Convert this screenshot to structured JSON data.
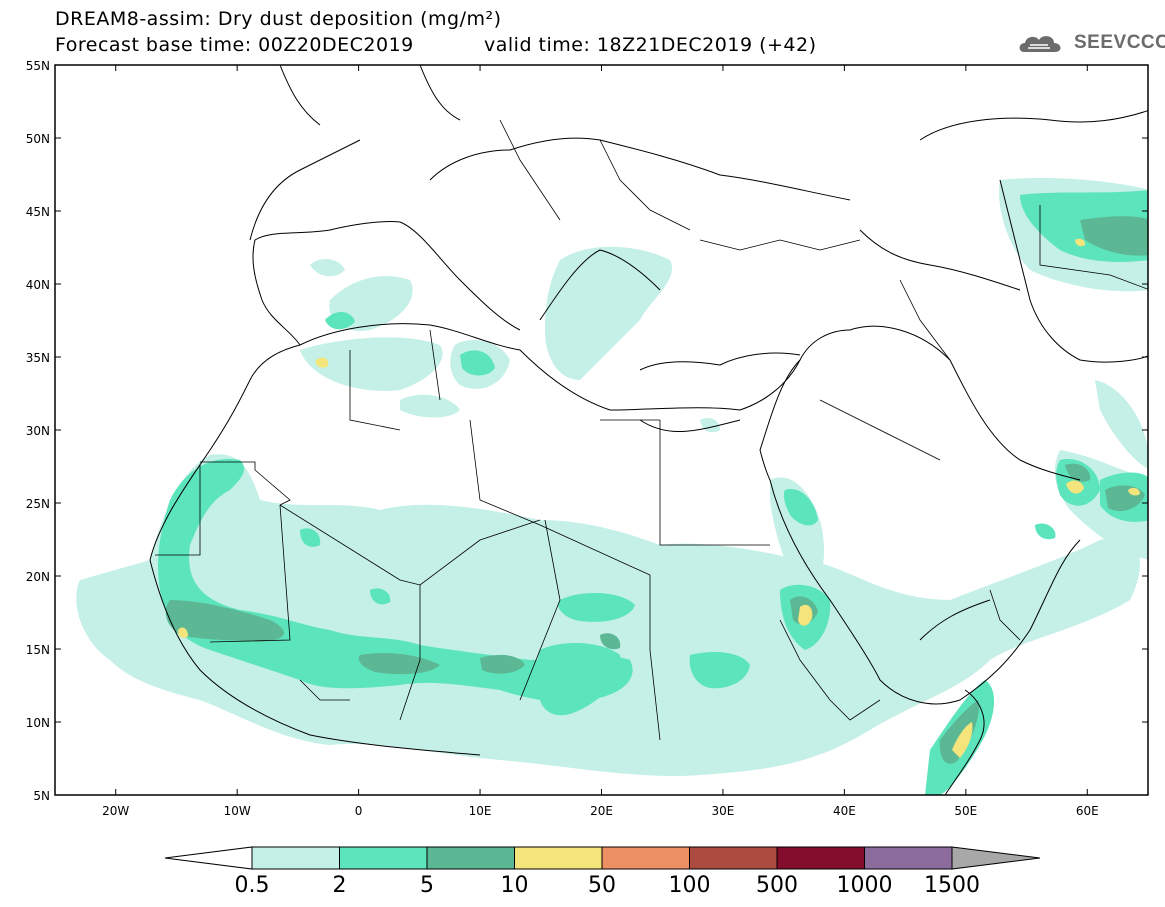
{
  "header": {
    "title_line1": "DREAM8-assim: Dry dust deposition (mg/m²)",
    "base_time": "Forecast base time: 00Z20DEC2019",
    "valid_time": "valid time: 18Z21DEC2019 (+42)",
    "logo_text": "SEEVCCC",
    "logo_icon": "cloud-logo-icon"
  },
  "axes": {
    "lat_labels": [
      "55N",
      "50N",
      "45N",
      "40N",
      "35N",
      "30N",
      "25N",
      "20N",
      "15N",
      "10N",
      "5N"
    ],
    "lon_labels": [
      "20W",
      "10W",
      "0",
      "10E",
      "20E",
      "30E",
      "40E",
      "50E",
      "60E"
    ]
  },
  "colorbar": {
    "labels": [
      "0.5",
      "2",
      "5",
      "10",
      "50",
      "100",
      "500",
      "1000",
      "1500"
    ],
    "colors": [
      "#ffffff",
      "#c4f0e8",
      "#5ce4bc",
      "#5cb894",
      "#f4e47c",
      "#ec9064",
      "#ac4c40",
      "#840c2c",
      "#8c6c9c",
      "#a8a8a8"
    ]
  },
  "map_data": {
    "lon_range": [
      -25,
      65
    ],
    "lat_range": [
      5,
      55
    ],
    "field": "Dry dust deposition",
    "units": "mg/m²"
  }
}
